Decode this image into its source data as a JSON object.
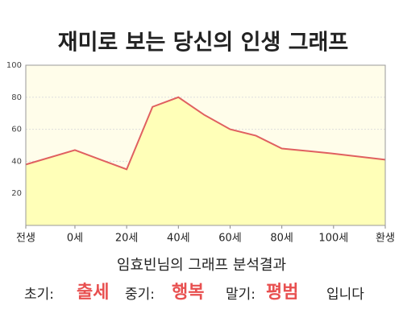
{
  "chart_data": {
    "type": "area",
    "title": "재미로 보는 당신의 인생 그래프",
    "x": [
      -19,
      0,
      20,
      30,
      40,
      50,
      60,
      70,
      80,
      99,
      120
    ],
    "values": [
      38,
      47,
      35,
      74,
      80,
      69,
      60,
      56,
      48,
      45,
      41
    ],
    "color": "#e06060",
    "fill": "#ffffb8",
    "background": "#fffdea",
    "xlim": [
      -19,
      120
    ],
    "ylim": [
      0,
      100
    ],
    "xticks": [
      {
        "value": -19,
        "label": "전생"
      },
      {
        "value": 0,
        "label": "0세"
      },
      {
        "value": 20,
        "label": "20세"
      },
      {
        "value": 40,
        "label": "40세"
      },
      {
        "value": 60,
        "label": "60세"
      },
      {
        "value": 80,
        "label": "80세"
      },
      {
        "value": 100,
        "label": "100세"
      },
      {
        "value": 120,
        "label": "환생"
      }
    ],
    "yticks": [
      20,
      40,
      60,
      80,
      100
    ],
    "grid": true
  },
  "result": {
    "heading": "임효빈님의 그래프 분석결과",
    "parts": [
      {
        "label": "초기:",
        "value": "출세"
      },
      {
        "label": "중기:",
        "value": "행복"
      },
      {
        "label": "말기:",
        "value": "평범"
      }
    ],
    "ending": "입니다"
  }
}
